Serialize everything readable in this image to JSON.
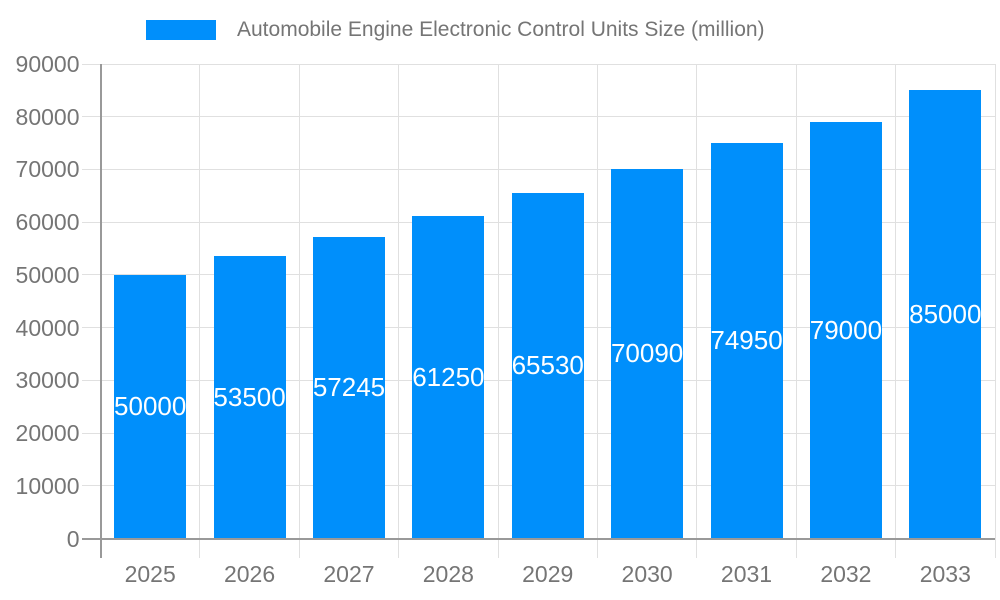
{
  "chart_data": {
    "type": "bar",
    "title": "Automobile Engine Electronic Control Units Size (million)",
    "categories": [
      "2025",
      "2026",
      "2027",
      "2028",
      "2029",
      "2030",
      "2031",
      "2032",
      "2033"
    ],
    "series": [
      {
        "name": "Automobile Engine Electronic Control Units Size (million)",
        "values": [
          50000,
          53500,
          57245,
          61250,
          65530,
          70090,
          74950,
          79000,
          85000
        ]
      }
    ],
    "value_labels": [
      "50000",
      "53500",
      "57245",
      "61250",
      "65530",
      "70090",
      "74950",
      "79000",
      "85000"
    ],
    "xlabel": "",
    "ylabel": "",
    "ylim": [
      0,
      90000
    ],
    "ytick_step": 10000,
    "yticks": [
      0,
      10000,
      20000,
      30000,
      40000,
      50000,
      60000,
      70000,
      80000,
      90000
    ],
    "ytick_labels": [
      "0",
      "10000",
      "20000",
      "30000",
      "40000",
      "50000",
      "60000",
      "70000",
      "80000",
      "90000"
    ],
    "grid": true,
    "legend_position": "top"
  },
  "colors": {
    "bar": "#008FFB",
    "axis_line": "#999999",
    "grid_line": "#e0e0e0",
    "tick_text": "#757575",
    "title_text": "#757575",
    "value_label_text": "#ffffff",
    "background": "#ffffff"
  }
}
